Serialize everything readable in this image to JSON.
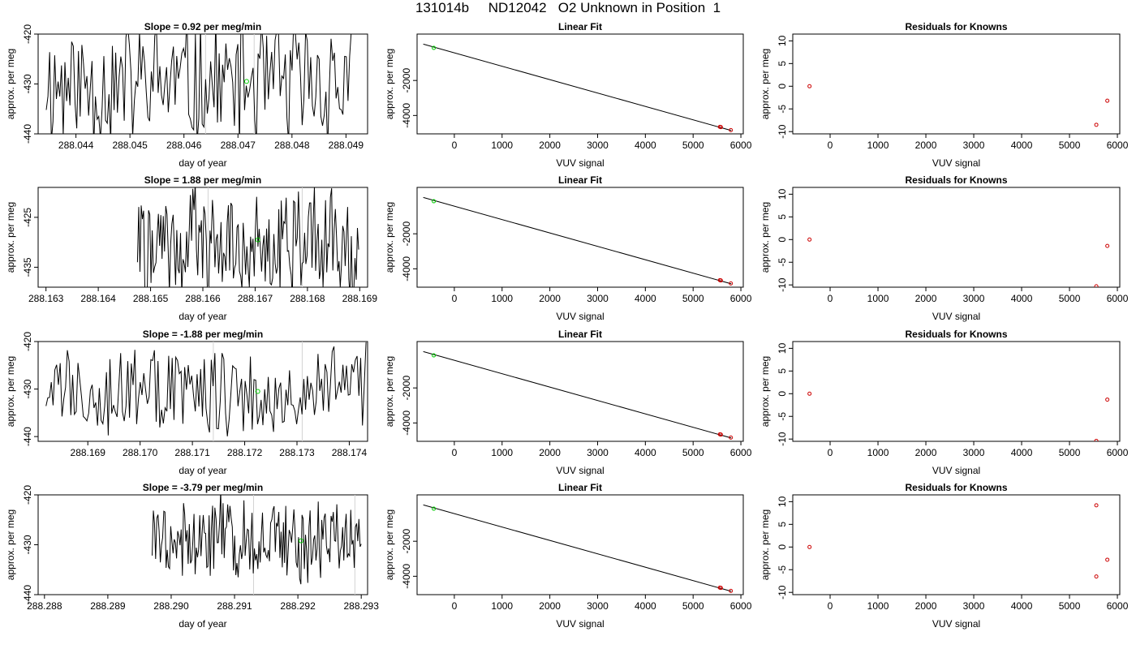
{
  "page": {
    "title": "131014b     ND12042   O2 Unknown in Position  1"
  },
  "chart_data": [
    {
      "type": "line",
      "panel": "timeseries",
      "title": "Slope =  0.92  per meg/min",
      "xlabel": "day of year",
      "ylabel": "approx. per meg",
      "xlim": [
        288.0433,
        288.0494
      ],
      "ylim": [
        -440,
        -420
      ],
      "xticks": [
        288.044,
        288.045,
        288.046,
        288.047,
        288.048,
        288.049
      ],
      "xtick_labels": [
        "288.044",
        "288.045",
        "288.046",
        "288.047",
        "288.048",
        "288.049"
      ],
      "yticks": [
        -440,
        -430,
        -420
      ],
      "ytick_labels": [
        "-440",
        "-430",
        "-420"
      ],
      "x_start": 288.04345,
      "x_end": 288.0491,
      "seed": 11,
      "center": -430,
      "amplitude": 14,
      "gap_lines": [
        288.0464,
        288.0473
      ],
      "mean_point": [
        288.04716,
        -429.5
      ]
    },
    {
      "type": "scatter",
      "panel": "fit",
      "title": "Linear Fit",
      "xlabel": "VUV signal",
      "ylabel": "approx. per meg",
      "xlim": [
        -780,
        6050
      ],
      "ylim": [
        -5050,
        650
      ],
      "xticks": [
        0,
        1000,
        2000,
        3000,
        4000,
        5000,
        6000
      ],
      "xtick_labels": [
        "0",
        "1000",
        "2000",
        "3000",
        "4000",
        "5000",
        "6000"
      ],
      "yticks": [
        -4000,
        -2000
      ],
      "ytick_labels": [
        "-4000",
        "-2000"
      ],
      "line": [
        [
          -650,
          75
        ],
        [
          5800,
          -4860
        ]
      ],
      "known_points": [
        [
          5560,
          -4651
        ],
        [
          5580,
          -4664
        ],
        [
          5790,
          -4837
        ]
      ],
      "unknown_point": [
        -430,
        -140
      ]
    },
    {
      "type": "scatter",
      "panel": "residuals",
      "title": "Residuals for Knowns",
      "xlabel": "VUV signal",
      "ylabel": "approx. per meg",
      "xlim": [
        -780,
        6050
      ],
      "ylim": [
        -10.5,
        11.5
      ],
      "xticks": [
        0,
        1000,
        2000,
        3000,
        4000,
        5000,
        6000
      ],
      "xtick_labels": [
        "0",
        "1000",
        "2000",
        "3000",
        "4000",
        "5000",
        "6000"
      ],
      "yticks": [
        -10,
        -5,
        0,
        5,
        10
      ],
      "ytick_labels": [
        "-10",
        "-5",
        "0",
        "5",
        "10"
      ],
      "points": [
        [
          -430,
          0
        ],
        [
          5560,
          -8.5
        ],
        [
          5790,
          -3.2
        ]
      ]
    },
    {
      "type": "line",
      "panel": "timeseries",
      "title": "Slope =  1.88  per meg/min",
      "xlabel": "day of year",
      "ylabel": "approx. per meg",
      "xlim": [
        288.16285,
        288.16915
      ],
      "ylim": [
        -439,
        -419
      ],
      "xticks": [
        288.163,
        288.164,
        288.165,
        288.166,
        288.167,
        288.168,
        288.169
      ],
      "xtick_labels": [
        "288.163",
        "288.164",
        "288.165",
        "288.166",
        "288.167",
        "288.168",
        "288.169"
      ],
      "yticks": [
        -435,
        -425
      ],
      "ytick_labels": [
        "-435",
        "-425"
      ],
      "x_start": 288.16475,
      "x_end": 288.16898,
      "seed": 22,
      "center": -430,
      "amplitude": 11,
      "gap_lines": [
        288.1661,
        288.1679
      ],
      "mean_point": [
        288.16705,
        -429.5
      ]
    },
    {
      "type": "scatter",
      "panel": "fit",
      "title": "Linear Fit",
      "xlabel": "VUV signal",
      "ylabel": "approx. per meg",
      "xlim": [
        -780,
        6050
      ],
      "ylim": [
        -5050,
        650
      ],
      "xticks": [
        0,
        1000,
        2000,
        3000,
        4000,
        5000,
        6000
      ],
      "xtick_labels": [
        "0",
        "1000",
        "2000",
        "3000",
        "4000",
        "5000",
        "6000"
      ],
      "yticks": [
        -4000,
        -2000
      ],
      "ytick_labels": [
        "-4000",
        "-2000"
      ],
      "line": [
        [
          -650,
          75
        ],
        [
          5800,
          -4860
        ]
      ],
      "known_points": [
        [
          5560,
          -4651
        ],
        [
          5580,
          -4664
        ],
        [
          5790,
          -4837
        ]
      ],
      "unknown_point": [
        -430,
        -140
      ]
    },
    {
      "type": "scatter",
      "panel": "residuals",
      "title": "Residuals for Knowns",
      "xlabel": "VUV signal",
      "ylabel": "approx. per meg",
      "xlim": [
        -780,
        6050
      ],
      "ylim": [
        -10.5,
        11.5
      ],
      "xticks": [
        0,
        1000,
        2000,
        3000,
        4000,
        5000,
        6000
      ],
      "xtick_labels": [
        "0",
        "1000",
        "2000",
        "3000",
        "4000",
        "5000",
        "6000"
      ],
      "yticks": [
        -10,
        -5,
        0,
        5,
        10
      ],
      "ytick_labels": [
        "-10",
        "-5",
        "0",
        "5",
        "10"
      ],
      "points": [
        [
          -430,
          0
        ],
        [
          5560,
          -10.3
        ],
        [
          5790,
          -1.4
        ]
      ]
    },
    {
      "type": "line",
      "panel": "timeseries",
      "title": "Slope =  -1.88  per meg/min",
      "xlabel": "day of year",
      "ylabel": "approx. per meg",
      "xlim": [
        288.16805,
        288.17435
      ],
      "ylim": [
        -441,
        -420
      ],
      "xticks": [
        288.169,
        288.17,
        288.171,
        288.172,
        288.173,
        288.174
      ],
      "xtick_labels": [
        "288.169",
        "288.170",
        "288.171",
        "288.172",
        "288.173",
        "288.174"
      ],
      "yticks": [
        -440,
        -430,
        -420
      ],
      "ytick_labels": [
        "-440",
        "-430",
        "-420"
      ],
      "x_start": 288.1682,
      "x_end": 288.17432,
      "seed": 33,
      "center": -430,
      "amplitude": 10,
      "gap_lines": [
        288.1714,
        288.1731
      ],
      "mean_point": [
        288.17225,
        -430.5
      ]
    },
    {
      "type": "scatter",
      "panel": "fit",
      "title": "Linear Fit",
      "xlabel": "VUV signal",
      "ylabel": "approx. per meg",
      "xlim": [
        -780,
        6050
      ],
      "ylim": [
        -5050,
        650
      ],
      "xticks": [
        0,
        1000,
        2000,
        3000,
        4000,
        5000,
        6000
      ],
      "xtick_labels": [
        "0",
        "1000",
        "2000",
        "3000",
        "4000",
        "5000",
        "6000"
      ],
      "yticks": [
        -4000,
        -2000
      ],
      "ytick_labels": [
        "-4000",
        "-2000"
      ],
      "line": [
        [
          -650,
          75
        ],
        [
          5800,
          -4860
        ]
      ],
      "known_points": [
        [
          5560,
          -4651
        ],
        [
          5580,
          -4664
        ],
        [
          5790,
          -4837
        ]
      ],
      "unknown_point": [
        -430,
        -140
      ]
    },
    {
      "type": "scatter",
      "panel": "residuals",
      "title": "Residuals for Knowns",
      "xlabel": "VUV signal",
      "ylabel": "approx. per meg",
      "xlim": [
        -780,
        6050
      ],
      "ylim": [
        -10.5,
        11.5
      ],
      "xticks": [
        0,
        1000,
        2000,
        3000,
        4000,
        5000,
        6000
      ],
      "xtick_labels": [
        "0",
        "1000",
        "2000",
        "3000",
        "4000",
        "5000",
        "6000"
      ],
      "yticks": [
        -10,
        -5,
        0,
        5,
        10
      ],
      "ytick_labels": [
        "-10",
        "-5",
        "0",
        "5",
        "10"
      ],
      "points": [
        [
          -430,
          0
        ],
        [
          5560,
          -10.4
        ],
        [
          5790,
          -1.3
        ]
      ]
    },
    {
      "type": "line",
      "panel": "timeseries",
      "title": "Slope =  -3.79  per meg/min",
      "xlabel": "day of year",
      "ylabel": "approx. per meg",
      "xlim": [
        288.2879,
        288.2931
      ],
      "ylim": [
        -440,
        -420
      ],
      "xticks": [
        288.288,
        288.289,
        288.29,
        288.291,
        288.292,
        288.293
      ],
      "xtick_labels": [
        "288.288",
        "288.289",
        "288.290",
        "288.291",
        "288.292",
        "288.293"
      ],
      "yticks": [
        -440,
        -430,
        -420
      ],
      "ytick_labels": [
        "-440",
        "-430",
        "-420"
      ],
      "x_start": 288.2897,
      "x_end": 288.293,
      "seed": 44,
      "center": -429,
      "amplitude": 9,
      "gap_lines": [
        288.2913,
        288.2929
      ],
      "mean_point": [
        288.29205,
        -429.2
      ]
    },
    {
      "type": "scatter",
      "panel": "fit",
      "title": "Linear Fit",
      "xlabel": "VUV signal",
      "ylabel": "approx. per meg",
      "xlim": [
        -780,
        6050
      ],
      "ylim": [
        -5050,
        650
      ],
      "xticks": [
        0,
        1000,
        2000,
        3000,
        4000,
        5000,
        6000
      ],
      "xtick_labels": [
        "0",
        "1000",
        "2000",
        "3000",
        "4000",
        "5000",
        "6000"
      ],
      "yticks": [
        -4000,
        -2000
      ],
      "ytick_labels": [
        "-4000",
        "-2000"
      ],
      "line": [
        [
          -650,
          75
        ],
        [
          5800,
          -4860
        ]
      ],
      "known_points": [
        [
          5560,
          -4651
        ],
        [
          5580,
          -4664
        ],
        [
          5790,
          -4837
        ]
      ],
      "unknown_point": [
        -430,
        -140
      ]
    },
    {
      "type": "scatter",
      "panel": "residuals",
      "title": "Residuals for Knowns",
      "xlabel": "VUV signal",
      "ylabel": "approx. per meg",
      "xlim": [
        -780,
        6050
      ],
      "ylim": [
        -10.5,
        11.5
      ],
      "xticks": [
        0,
        1000,
        2000,
        3000,
        4000,
        5000,
        6000
      ],
      "xtick_labels": [
        "0",
        "1000",
        "2000",
        "3000",
        "4000",
        "5000",
        "6000"
      ],
      "yticks": [
        -10,
        -5,
        0,
        5,
        10
      ],
      "ytick_labels": [
        "-10",
        "-5",
        "0",
        "5",
        "10"
      ],
      "points": [
        [
          -430,
          0
        ],
        [
          5560,
          9.2
        ],
        [
          5560,
          -6.5
        ],
        [
          5790,
          -2.8
        ]
      ]
    }
  ],
  "colors": {
    "axis": "#000000",
    "series_line": "#000000",
    "fit_line": "#000000",
    "known_points": "#cc0000",
    "unknown_point": "#00cc00",
    "gap_lines": "#d3d3d3"
  }
}
